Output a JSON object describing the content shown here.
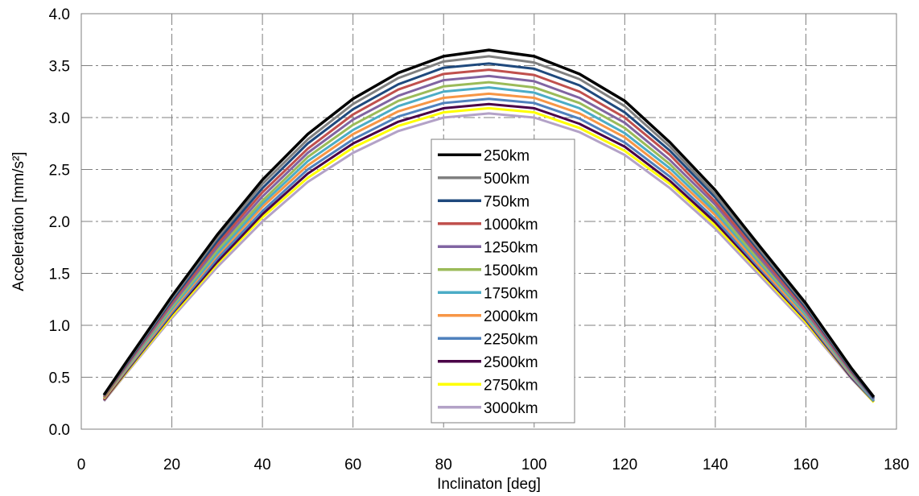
{
  "chart_data": {
    "type": "line",
    "xlabel": "Inclinaton [deg]",
    "ylabel": "Acceleration [mm/s²]",
    "xlim": [
      0,
      180
    ],
    "ylim": [
      0.0,
      4.0
    ],
    "x_ticks": [
      "0",
      "20",
      "40",
      "60",
      "80",
      "100",
      "120",
      "140",
      "160",
      "180"
    ],
    "y_ticks": [
      "0.0",
      "0.5",
      "1.0",
      "1.5",
      "2.0",
      "2.5",
      "3.0",
      "3.5",
      "4.0"
    ],
    "grid": true,
    "legend_position": "center",
    "x": [
      5,
      10,
      20,
      30,
      40,
      50,
      60,
      70,
      80,
      90,
      100,
      110,
      120,
      130,
      140,
      150,
      160,
      170,
      175
    ],
    "series": [
      {
        "name": "250km",
        "color": "#000000",
        "values": [
          0.33,
          0.65,
          1.28,
          1.87,
          2.4,
          2.84,
          3.18,
          3.43,
          3.59,
          3.65,
          3.59,
          3.42,
          3.16,
          2.76,
          2.3,
          1.75,
          1.21,
          0.59,
          0.31
        ]
      },
      {
        "name": "500km",
        "color": "#808080",
        "values": [
          0.32,
          0.64,
          1.26,
          1.84,
          2.36,
          2.79,
          3.13,
          3.38,
          3.54,
          3.59,
          3.53,
          3.37,
          3.11,
          2.72,
          2.26,
          1.72,
          1.19,
          0.58,
          0.31
        ]
      },
      {
        "name": "750km",
        "color": "#1f497d",
        "values": [
          0.32,
          0.63,
          1.24,
          1.81,
          2.32,
          2.75,
          3.08,
          3.32,
          3.48,
          3.52,
          3.47,
          3.31,
          3.05,
          2.68,
          2.23,
          1.7,
          1.17,
          0.57,
          0.3
        ]
      },
      {
        "name": "1000km",
        "color": "#c0504d",
        "values": [
          0.31,
          0.62,
          1.22,
          1.78,
          2.28,
          2.7,
          3.03,
          3.27,
          3.42,
          3.46,
          3.41,
          3.25,
          3.0,
          2.64,
          2.19,
          1.67,
          1.15,
          0.56,
          0.3
        ]
      },
      {
        "name": "1250km",
        "color": "#8064a2",
        "values": [
          0.31,
          0.61,
          1.2,
          1.75,
          2.24,
          2.66,
          2.98,
          3.21,
          3.36,
          3.4,
          3.35,
          3.19,
          2.95,
          2.59,
          2.16,
          1.64,
          1.13,
          0.55,
          0.29
        ]
      },
      {
        "name": "1500km",
        "color": "#9bbb59",
        "values": [
          0.3,
          0.6,
          1.18,
          1.72,
          2.2,
          2.62,
          2.93,
          3.16,
          3.3,
          3.34,
          3.29,
          3.14,
          2.9,
          2.55,
          2.12,
          1.61,
          1.12,
          0.54,
          0.29
        ]
      },
      {
        "name": "1750km",
        "color": "#4bacc6",
        "values": [
          0.3,
          0.59,
          1.16,
          1.69,
          2.17,
          2.58,
          2.88,
          3.11,
          3.25,
          3.29,
          3.24,
          3.09,
          2.85,
          2.51,
          2.09,
          1.59,
          1.1,
          0.53,
          0.28
        ]
      },
      {
        "name": "2000km",
        "color": "#f79646",
        "values": [
          0.29,
          0.58,
          1.14,
          1.67,
          2.14,
          2.54,
          2.84,
          3.06,
          3.19,
          3.23,
          3.19,
          3.04,
          2.81,
          2.47,
          2.06,
          1.56,
          1.08,
          0.52,
          0.28
        ]
      },
      {
        "name": "2250km",
        "color": "#4f81bd",
        "values": [
          0.29,
          0.57,
          1.12,
          1.64,
          2.1,
          2.5,
          2.79,
          3.01,
          3.14,
          3.18,
          3.14,
          2.99,
          2.76,
          2.43,
          2.02,
          1.54,
          1.06,
          0.51,
          0.27
        ]
      },
      {
        "name": "2500km",
        "color": "#4a0047",
        "values": [
          0.28,
          0.56,
          1.11,
          1.61,
          2.07,
          2.46,
          2.75,
          2.96,
          3.09,
          3.13,
          3.09,
          2.94,
          2.72,
          2.39,
          1.99,
          1.52,
          1.05,
          0.5,
          0.27
        ]
      },
      {
        "name": "2750km",
        "color": "#ffff00",
        "values": [
          0.28,
          0.55,
          1.09,
          1.59,
          2.04,
          2.42,
          2.71,
          2.92,
          3.05,
          3.09,
          3.05,
          2.9,
          2.68,
          2.36,
          1.96,
          1.5,
          1.03,
          0.5,
          0.26
        ]
      },
      {
        "name": "3000km",
        "color": "#b3a2c7",
        "values": [
          0.27,
          0.54,
          1.07,
          1.56,
          2.0,
          2.38,
          2.66,
          2.87,
          3.0,
          3.04,
          3.0,
          2.86,
          2.64,
          2.32,
          1.93,
          1.47,
          1.01,
          0.49,
          0.26
        ]
      }
    ]
  }
}
